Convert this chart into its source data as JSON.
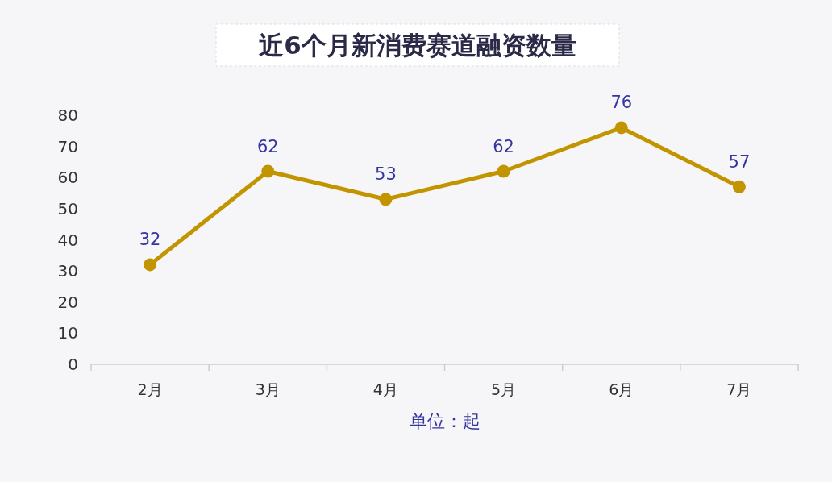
{
  "chart_data": {
    "type": "line",
    "title": "近6个月新消费赛道融资数量",
    "xlabel": "单位：起",
    "categories": [
      "2月",
      "3月",
      "4月",
      "5月",
      "6月",
      "7月"
    ],
    "series": [
      {
        "color": "#c29500",
        "values": [
          32,
          62,
          53,
          62,
          76,
          57
        ]
      }
    ],
    "ylim": [
      0,
      80
    ],
    "yticks": [
      0,
      10,
      20,
      30,
      40,
      50,
      60,
      70,
      80
    ],
    "data_labels": true,
    "marker": "circle",
    "line_style": "solid"
  }
}
